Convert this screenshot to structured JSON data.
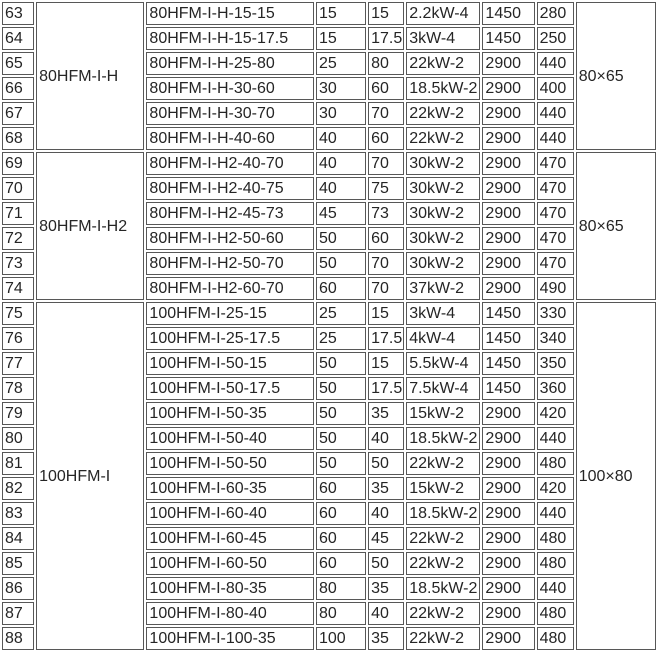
{
  "colors": {
    "background": "#ffffff",
    "cell_border": "#575757",
    "text": "#252525"
  },
  "table": {
    "row_number_start": "63",
    "row_number_end": "88",
    "sections": [
      {
        "series": "80HFM-I-H",
        "size": "80×65",
        "rows": [
          [
            "63",
            "80HFM-I-H-15-15",
            "15",
            "15",
            "2.2kW-4",
            "1450",
            "280"
          ],
          [
            "64",
            "80HFM-I-H-15-17.5",
            "15",
            "17.5",
            "3kW-4",
            "1450",
            "250"
          ],
          [
            "65",
            "80HFM-I-H-25-80",
            "25",
            "80",
            "22kW-2",
            "2900",
            "440"
          ],
          [
            "66",
            "80HFM-I-H-30-60",
            "30",
            "60",
            "18.5kW-2",
            "2900",
            "400"
          ],
          [
            "67",
            "80HFM-I-H-30-70",
            "30",
            "70",
            "22kW-2",
            "2900",
            "440"
          ],
          [
            "68",
            "80HFM-I-H-40-60",
            "40",
            "60",
            "22kW-2",
            "2900",
            "440"
          ]
        ]
      },
      {
        "series": "80HFM-I-H2",
        "size": "80×65",
        "rows": [
          [
            "69",
            "80HFM-I-H2-40-70",
            "40",
            "70",
            "30kW-2",
            "2900",
            "470"
          ],
          [
            "70",
            "80HFM-I-H2-40-75",
            "40",
            "75",
            "30kW-2",
            "2900",
            "470"
          ],
          [
            "71",
            "80HFM-I-H2-45-73",
            "45",
            "73",
            "30kW-2",
            "2900",
            "470"
          ],
          [
            "72",
            "80HFM-I-H2-50-60",
            "50",
            "60",
            "30kW-2",
            "2900",
            "470"
          ],
          [
            "73",
            "80HFM-I-H2-50-70",
            "50",
            "70",
            "30kW-2",
            "2900",
            "470"
          ],
          [
            "74",
            "80HFM-I-H2-60-70",
            "60",
            "70",
            "37kW-2",
            "2900",
            "490"
          ]
        ]
      },
      {
        "series": "100HFM-I",
        "size": "100×80",
        "rows": [
          [
            "75",
            "100HFM-I-25-15",
            "25",
            "15",
            "3kW-4",
            "1450",
            "330"
          ],
          [
            "76",
            "100HFM-I-25-17.5",
            "25",
            "17.5",
            "4kW-4",
            "1450",
            "340"
          ],
          [
            "77",
            "100HFM-I-50-15",
            "50",
            "15",
            "5.5kW-4",
            "1450",
            "350"
          ],
          [
            "78",
            "100HFM-I-50-17.5",
            "50",
            "17.5",
            "7.5kW-4",
            "1450",
            "360"
          ],
          [
            "79",
            "100HFM-I-50-35",
            "50",
            "35",
            "15kW-2",
            "2900",
            "420"
          ],
          [
            "80",
            "100HFM-I-50-40",
            "50",
            "40",
            "18.5kW-2",
            "2900",
            "440"
          ],
          [
            "81",
            "100HFM-I-50-50",
            "50",
            "50",
            "22kW-2",
            "2900",
            "480"
          ],
          [
            "82",
            "100HFM-I-60-35",
            "60",
            "35",
            "15kW-2",
            "2900",
            "420"
          ],
          [
            "83",
            "100HFM-I-60-40",
            "60",
            "40",
            "18.5kW-2",
            "2900",
            "440"
          ],
          [
            "84",
            "100HFM-I-60-45",
            "60",
            "45",
            "22kW-2",
            "2900",
            "480"
          ],
          [
            "85",
            "100HFM-I-60-50",
            "60",
            "50",
            "22kW-2",
            "2900",
            "480"
          ],
          [
            "86",
            "100HFM-I-80-35",
            "80",
            "35",
            "18.5kW-2",
            "2900",
            "440"
          ],
          [
            "87",
            "100HFM-I-80-40",
            "80",
            "40",
            "22kW-2",
            "2900",
            "480"
          ],
          [
            "88",
            "100HFM-I-100-35",
            "100",
            "35",
            "22kW-2",
            "2900",
            "480"
          ]
        ]
      }
    ]
  }
}
